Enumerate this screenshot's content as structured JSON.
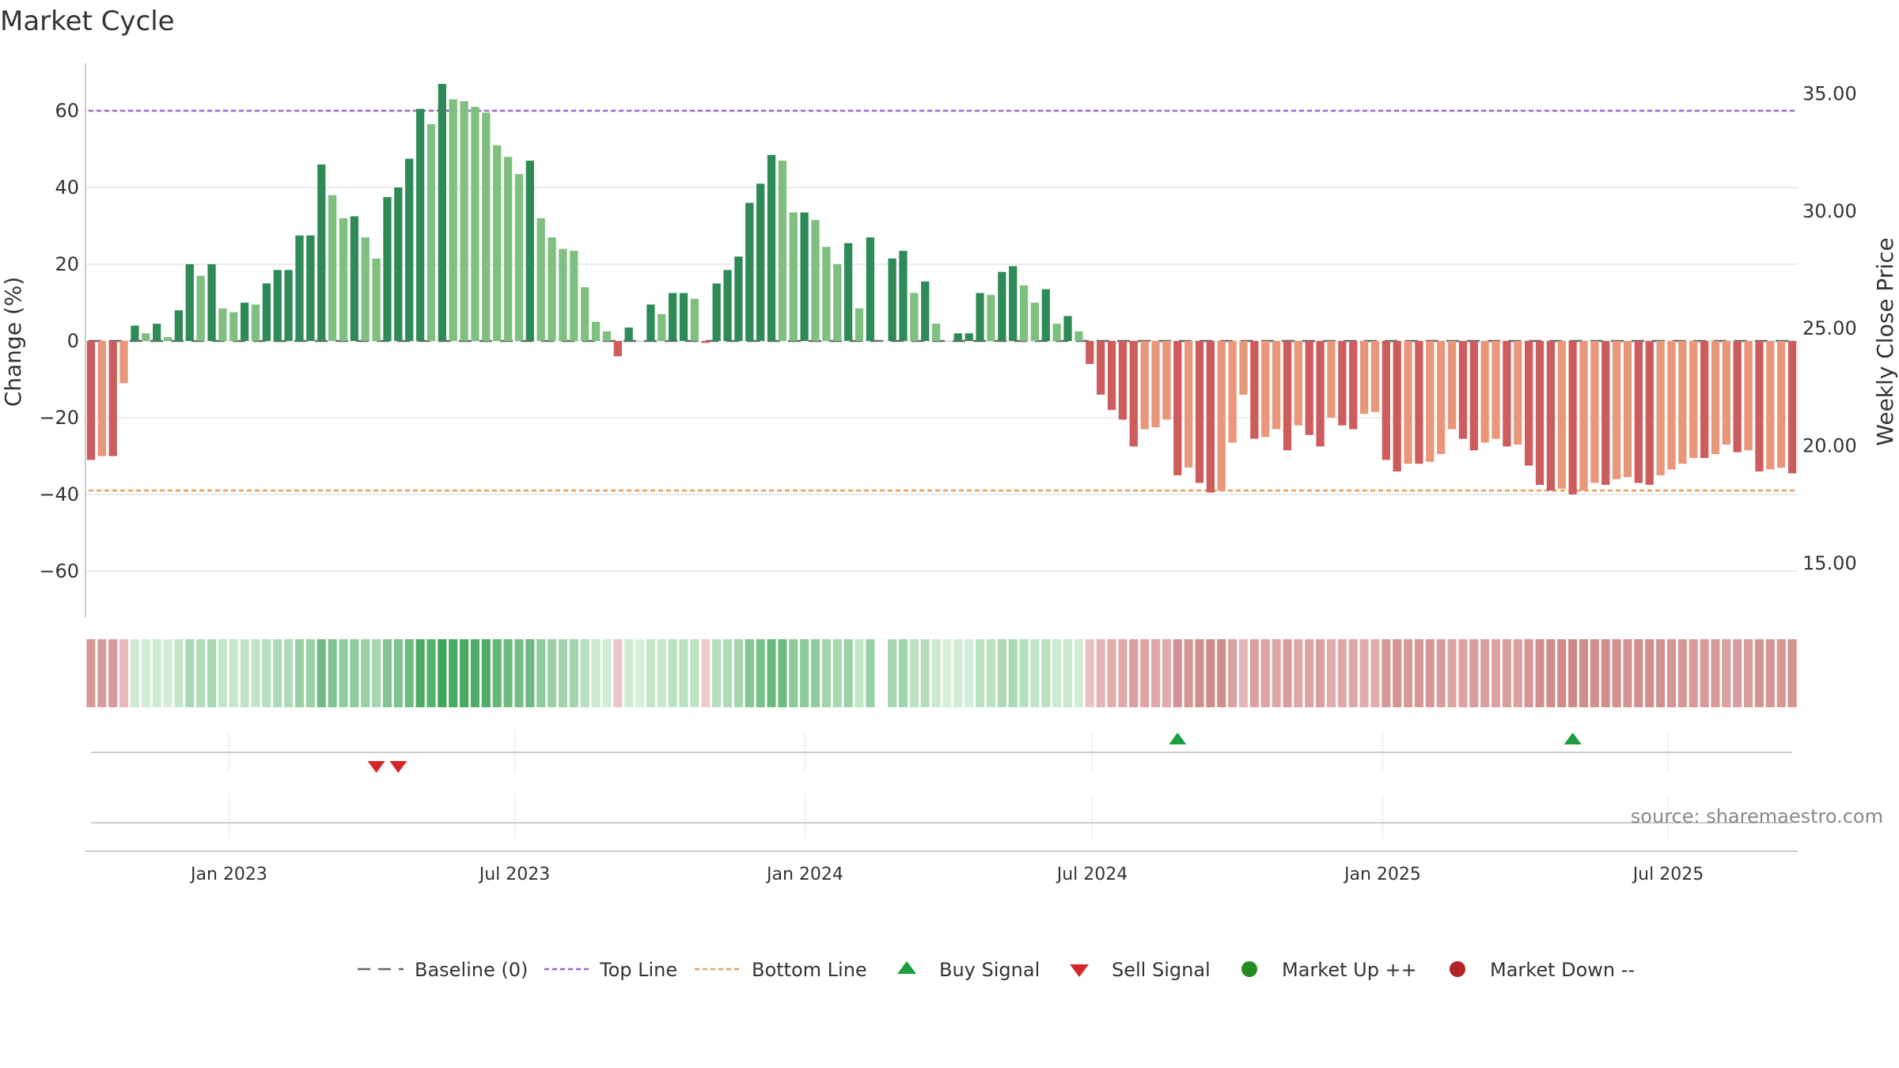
{
  "chart_data": {
    "type": "bar",
    "title": "Market Cycle",
    "ylabel": "Change (%)",
    "y2label": "Weekly Close Price",
    "ylim": [
      -72,
      73
    ],
    "yticks": [
      60,
      40,
      20,
      0,
      -20,
      -40,
      -60
    ],
    "ytick_labels": [
      "60",
      "40",
      "20",
      "0",
      "−20",
      "−40",
      "−60"
    ],
    "y2lim": [
      12.7,
      36.3
    ],
    "y2ticks": [
      35,
      30,
      25,
      20,
      15
    ],
    "y2tick_labels": [
      "35.00",
      "30.00",
      "25.00",
      "20.00",
      "15.00"
    ],
    "top_line": 60,
    "bottom_line": -39,
    "x_range": [
      "2022-10-02",
      "2025-09-21"
    ],
    "xticks": [
      "2023-01-01",
      "2023-07-01",
      "2024-01-01",
      "2024-07-01",
      "2025-01-01",
      "2025-07-01"
    ],
    "xtick_labels": [
      "Jan 2023",
      "Jul 2023",
      "Jan 2024",
      "Jul 2024",
      "Jan 2025",
      "Jul 2025"
    ],
    "start_week": "2022-10-02",
    "weeks_count": 156,
    "values": [
      -31,
      -30,
      -30,
      -11,
      4,
      2,
      4.5,
      1,
      8,
      20,
      17,
      20,
      8.5,
      7.5,
      10,
      9.5,
      15,
      18.5,
      18.5,
      27.5,
      27.5,
      46,
      38,
      32,
      32.5,
      27,
      21.5,
      37.5,
      40,
      47.5,
      60.5,
      56.5,
      67,
      63,
      62.5,
      61,
      59.5,
      51,
      48,
      43.5,
      47,
      32,
      27,
      24,
      23.5,
      14,
      5,
      2.5,
      -4,
      3.5,
      0,
      9.5,
      7,
      12.5,
      12.5,
      11,
      -0.5,
      15,
      18.5,
      22,
      36,
      41,
      48.5,
      47,
      33.5,
      33.5,
      31.5,
      24.5,
      20,
      25.5,
      8.5,
      27,
      0,
      21.5,
      23.5,
      12.5,
      15.5,
      4.5,
      0,
      2,
      2,
      12.5,
      12,
      18,
      19.5,
      14.5,
      10,
      13.5,
      4.5,
      6.5,
      2.5,
      -6,
      -14,
      -18,
      -20.5,
      -27.5,
      -23,
      -22.5,
      -20.5,
      -35,
      -33,
      -37,
      -39.5,
      -39,
      -26.5,
      -14,
      -25.5,
      -25,
      -23,
      -28.5,
      -22,
      -24.5,
      -27.5,
      -20,
      -22,
      -23,
      -19,
      -18.5,
      -31,
      -34,
      -32,
      -32,
      -31.5,
      -29.5,
      -23,
      -25.5,
      -28.5,
      -26.5,
      -25.5,
      -27.5,
      -27,
      -32.5,
      -37.5,
      -39,
      -38.5,
      -40,
      -39,
      -37,
      -37.5,
      -36,
      -35.5,
      -37,
      -37.5,
      -35,
      -33.5,
      -32,
      -30.5,
      -30.5,
      -29.5,
      -27,
      -29,
      -28.5,
      -34,
      -33.5,
      -33,
      -34.5
    ],
    "strip_values": [
      -31,
      -30,
      -30,
      -11,
      4,
      2,
      4.5,
      1,
      8,
      20,
      17,
      20,
      8.5,
      7.5,
      10,
      9.5,
      15,
      18.5,
      18.5,
      27.5,
      27.5,
      46,
      38,
      32,
      32.5,
      27,
      21.5,
      37.5,
      40,
      47.5,
      60.5,
      56.5,
      67,
      63,
      62.5,
      61,
      59.5,
      51,
      48,
      43.5,
      47,
      32,
      27,
      24,
      23.5,
      14,
      5,
      2.5,
      -4,
      3.5,
      0,
      9.5,
      7,
      12.5,
      12.5,
      11,
      -0.5,
      15,
      18.5,
      22,
      36,
      41,
      48.5,
      47,
      33.5,
      33.5,
      31.5,
      24.5,
      20,
      25.5,
      8.5,
      27,
      null,
      21.5,
      23.5,
      12.5,
      15.5,
      4.5,
      0,
      2,
      2,
      12.5,
      12,
      18,
      19.5,
      14.5,
      10,
      13.5,
      4.5,
      6.5,
      2.5,
      -6,
      -14,
      -18,
      -20.5,
      -27.5,
      -23,
      -22.5,
      -20.5,
      -35,
      -33,
      -37,
      -39.5,
      -39,
      -26.5,
      -14,
      -25.5,
      -25,
      -23,
      -28.5,
      -22,
      -24.5,
      -27.5,
      -20,
      -22,
      -23,
      -19,
      -18.5,
      -31,
      -34,
      -32,
      -32,
      -31.5,
      -29.5,
      -23,
      -25.5,
      -28.5,
      -26.5,
      -25.5,
      -27.5,
      -27,
      -32.5,
      -37.5,
      -39,
      -38.5,
      -40,
      -39,
      -37,
      -37.5,
      -36,
      -35.5,
      -37,
      -37.5,
      -35,
      -33.5,
      -32,
      -30.5,
      -30.5,
      -29.5,
      -27,
      -29,
      -28.5,
      -34,
      -33.5,
      -33,
      -34.5
    ],
    "buy_signals": [
      "2024-08-25",
      "2025-05-04"
    ],
    "sell_signals": [
      "2023-04-02",
      "2023-04-16"
    ],
    "colors": {
      "rising_positive": "#2e8b57",
      "falling_positive": "#7fbf7f",
      "falling_negative": "#cd5c5c",
      "rising_negative": "#e9967a",
      "top_line": "#9966cc",
      "bottom_line": "#e8a060",
      "baseline": "#666666",
      "buy": "#1a9e3f",
      "sell": "#d62728",
      "market_up": "#228b22",
      "market_down": "#b22222",
      "grid": "#e6e6e6",
      "axis": "#cccccc"
    },
    "legend": {
      "placement": "bottom-center",
      "items": [
        {
          "label": "Baseline (0)",
          "kind": "baseline"
        },
        {
          "label": "Top Line",
          "kind": "top"
        },
        {
          "label": "Bottom Line",
          "kind": "bottom"
        },
        {
          "label": "Buy Signal",
          "kind": "buy"
        },
        {
          "label": "Sell Signal",
          "kind": "sell"
        },
        {
          "label": "Market Up ++",
          "kind": "up"
        },
        {
          "label": "Market Down --",
          "kind": "down"
        }
      ]
    },
    "source": "source: sharemaestro.com",
    "grid": true
  }
}
